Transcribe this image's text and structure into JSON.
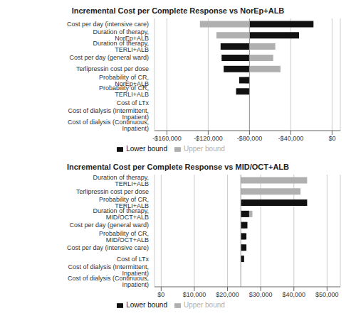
{
  "chart_data": [
    {
      "type": "bar",
      "orientation": "horizontal",
      "title": "Incremental Cost per Complete Response vs NorEp+ALB",
      "categories": [
        "Cost per day (intensive care)",
        "Duration of therapy, NorEp+ALB",
        "Duration of therapy, TERLI+ALB",
        "Cost per day (general ward)",
        "Terlipressin cost per dose",
        "Probability of CR, NorEp+ALB",
        "Probability of CR, TERLI+ALB",
        "Cost of LTx",
        "Cost of dialysis (Intermittent, Inpatient)",
        "Cost of dialysis (Continuous, Inpatient)"
      ],
      "series": [
        {
          "name": "Upper bound",
          "color": "#b0b0b0",
          "values": [
            -128000,
            -112000,
            -55000,
            -57000,
            -50000,
            -84000,
            -79500,
            -80000,
            -80000,
            -80000
          ]
        },
        {
          "name": "Lower bound",
          "color": "#111111",
          "values": [
            -18000,
            -32000,
            -108000,
            -107000,
            -105000,
            -90000,
            -93000,
            -80000,
            -80000,
            -80000
          ]
        }
      ],
      "baseline": -80000,
      "xlim": [
        -172000,
        8000
      ],
      "xticks": [
        {
          "value": -160000,
          "label": "-$160,000"
        },
        {
          "value": -120000,
          "label": "-$120,000"
        },
        {
          "value": -80000,
          "label": "-$80,000"
        },
        {
          "value": -40000,
          "label": "-$40,000"
        },
        {
          "value": 0,
          "label": "$0"
        }
      ],
      "grid": true,
      "legend": "bottom"
    },
    {
      "type": "bar",
      "orientation": "horizontal",
      "title": "Incremental Cost per Complete Response vs MID/OCT+ALB",
      "categories": [
        "Duration of therapy, TERLI+ALB",
        "Terlipressin cost per dose",
        "Probability of CR, TERLI+ALB",
        "Duration of therapy, MID/OCT+ALB",
        "Cost per day (general ward)",
        "Probability of CR, MID/OCT+ALB",
        "Cost per day (intensive care)",
        "Cost of LTx",
        "Cost of dialysis (Intermittent, Inpatient)",
        "Cost of dialysis (Continuous, Inpatient)"
      ],
      "series": [
        {
          "name": "Upper bound",
          "color": "#b0b0b0",
          "values": [
            44000,
            42000,
            25000,
            27500,
            25500,
            25200,
            25000,
            24500,
            24000,
            24000
          ]
        },
        {
          "name": "Lower bound",
          "color": "#111111",
          "values": [
            24000,
            24000,
            44000,
            26500,
            26000,
            25700,
            25700,
            25000,
            24000,
            24000
          ]
        }
      ],
      "baseline": 24000,
      "xlim": [
        -2000,
        54000
      ],
      "xticks": [
        {
          "value": 0,
          "label": "$0"
        },
        {
          "value": 10000,
          "label": "$10,000"
        },
        {
          "value": 20000,
          "label": "$20,000"
        },
        {
          "value": 30000,
          "label": "$30,000"
        },
        {
          "value": 40000,
          "label": "$40,000"
        },
        {
          "value": 50000,
          "label": "$50,000"
        }
      ],
      "grid": true,
      "legend": "bottom"
    }
  ]
}
